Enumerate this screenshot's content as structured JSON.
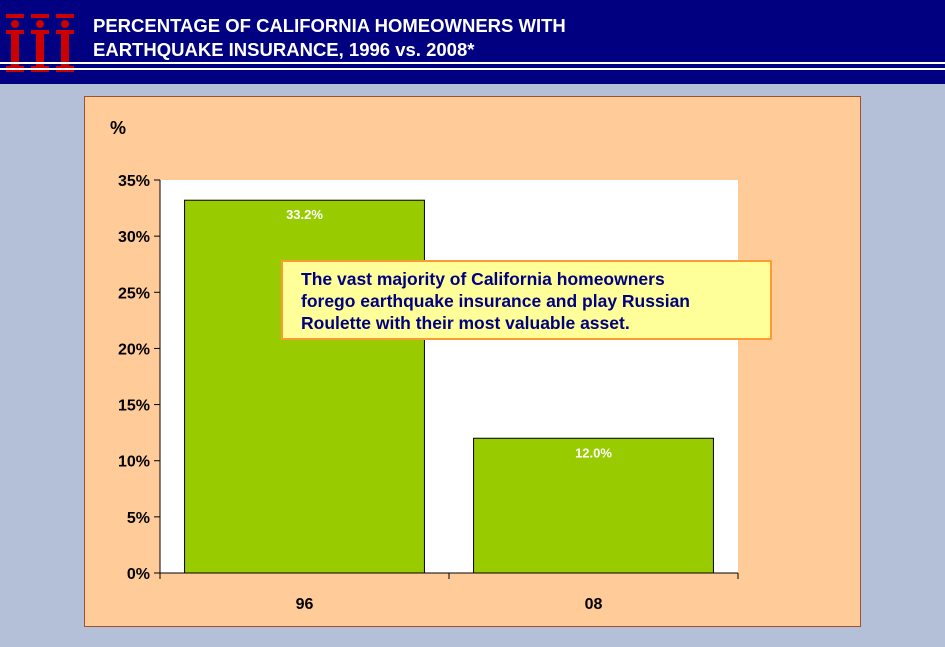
{
  "header": {
    "title_line1": "PERCENTAGE OF CALIFORNIA HOMEOWNERS WITH",
    "title_line2": "EARTHQUAKE INSURANCE, 1996 vs. 2008*",
    "logo_icon": "iii-logo-icon",
    "logo_color": "#cc0000",
    "background_color": "#000080"
  },
  "callout": {
    "line1": "The vast majority of California homeowners",
    "line2": "forego earthquake insurance and play Russian",
    "line3": "Roulette with their most valuable asset."
  },
  "chart_data": {
    "type": "bar",
    "categories": [
      "96",
      "08"
    ],
    "values": [
      33.2,
      12.0
    ],
    "data_labels": [
      "33.2%",
      "12.0%"
    ],
    "ylabel": "%",
    "ylim": [
      0,
      35
    ],
    "yticks": [
      0,
      5,
      10,
      15,
      20,
      25,
      30,
      35
    ],
    "ytick_labels": [
      "0%",
      "5%",
      "10%",
      "15%",
      "20%",
      "25%",
      "30%",
      "35%"
    ],
    "grid": false,
    "bar_color": "#99cc00",
    "plot_background": "#ffffff",
    "panel_background": "#ffcc99"
  }
}
